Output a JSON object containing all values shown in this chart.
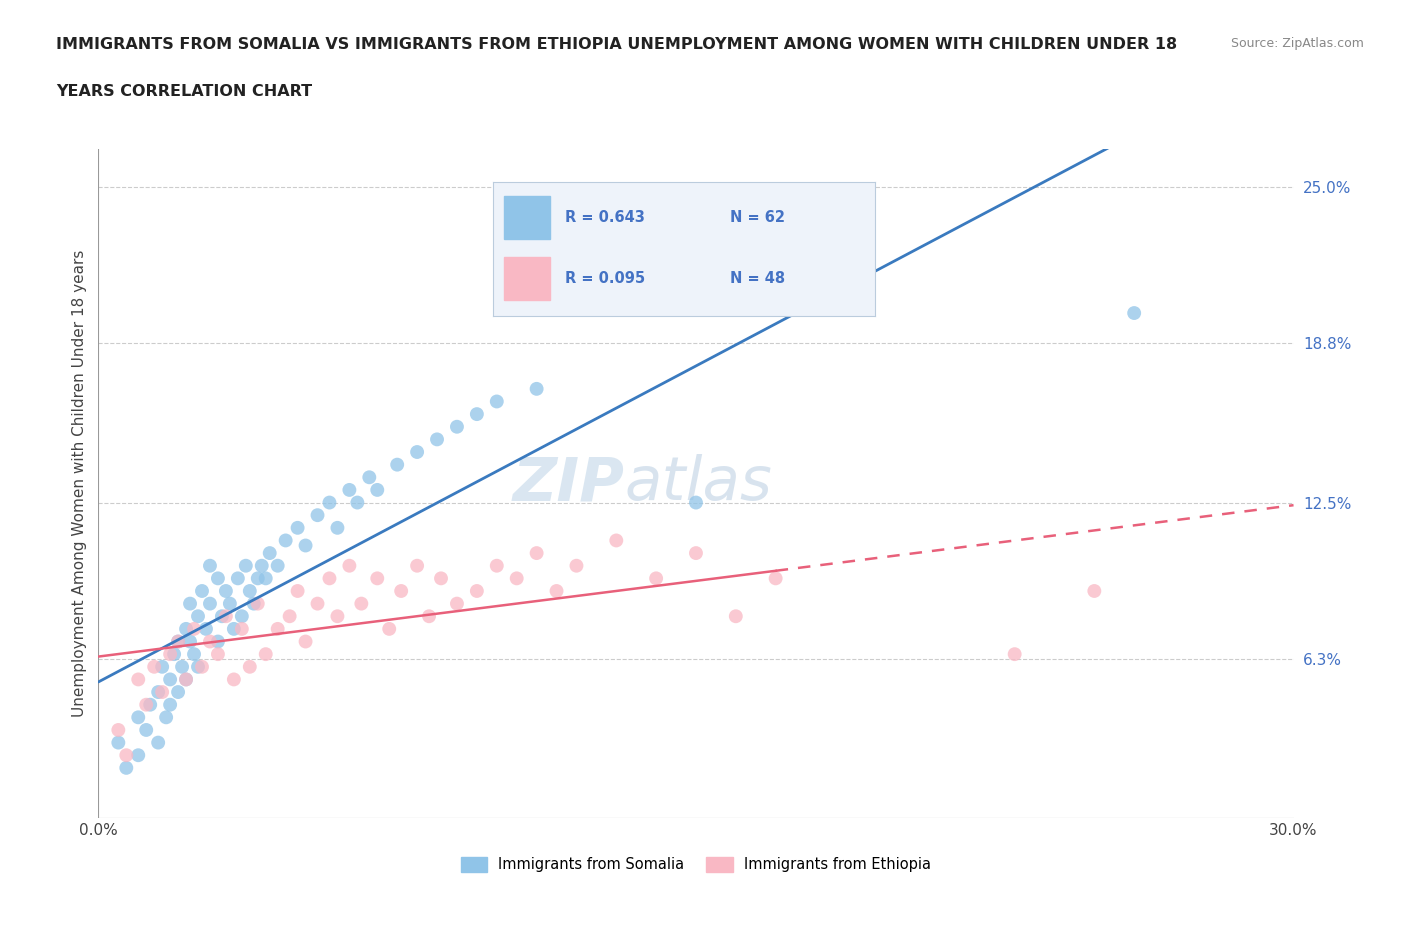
{
  "title_line1": "IMMIGRANTS FROM SOMALIA VS IMMIGRANTS FROM ETHIOPIA UNEMPLOYMENT AMONG WOMEN WITH CHILDREN UNDER 18",
  "title_line2": "YEARS CORRELATION CHART",
  "source": "Source: ZipAtlas.com",
  "ylabel": "Unemployment Among Women with Children Under 18 years",
  "xlim": [
    0.0,
    0.3
  ],
  "ylim": [
    0.0,
    0.265
  ],
  "x_ticks": [
    0.0,
    0.05,
    0.1,
    0.15,
    0.2,
    0.25,
    0.3
  ],
  "x_tick_labels": [
    "0.0%",
    "",
    "",
    "",
    "",
    "",
    "30.0%"
  ],
  "y_tick_labels_right": [
    "6.3%",
    "12.5%",
    "18.8%",
    "25.0%"
  ],
  "y_ticks_right": [
    0.063,
    0.125,
    0.188,
    0.25
  ],
  "somalia_color": "#90c4e8",
  "ethiopia_color": "#f9b8c4",
  "somalia_line_color": "#3a7abf",
  "ethiopia_line_color": "#e8607a",
  "R_somalia": "0.643",
  "N_somalia": "62",
  "R_ethiopia": "0.095",
  "N_ethiopia": "48",
  "watermark_zip": "ZIP",
  "watermark_atlas": "atlas",
  "legend_label_somalia": "Immigrants from Somalia",
  "legend_label_ethiopia": "Immigrants from Ethiopia",
  "somalia_x": [
    0.005,
    0.007,
    0.01,
    0.01,
    0.012,
    0.013,
    0.015,
    0.015,
    0.016,
    0.017,
    0.018,
    0.018,
    0.019,
    0.02,
    0.02,
    0.021,
    0.022,
    0.022,
    0.023,
    0.023,
    0.024,
    0.025,
    0.025,
    0.026,
    0.027,
    0.028,
    0.028,
    0.03,
    0.03,
    0.031,
    0.032,
    0.033,
    0.034,
    0.035,
    0.036,
    0.037,
    0.038,
    0.039,
    0.04,
    0.041,
    0.042,
    0.043,
    0.045,
    0.047,
    0.05,
    0.052,
    0.055,
    0.058,
    0.06,
    0.063,
    0.065,
    0.068,
    0.07,
    0.075,
    0.08,
    0.085,
    0.09,
    0.095,
    0.1,
    0.11,
    0.15,
    0.26
  ],
  "somalia_y": [
    0.03,
    0.02,
    0.04,
    0.025,
    0.035,
    0.045,
    0.05,
    0.03,
    0.06,
    0.04,
    0.055,
    0.045,
    0.065,
    0.07,
    0.05,
    0.06,
    0.055,
    0.075,
    0.07,
    0.085,
    0.065,
    0.08,
    0.06,
    0.09,
    0.075,
    0.085,
    0.1,
    0.095,
    0.07,
    0.08,
    0.09,
    0.085,
    0.075,
    0.095,
    0.08,
    0.1,
    0.09,
    0.085,
    0.095,
    0.1,
    0.095,
    0.105,
    0.1,
    0.11,
    0.115,
    0.108,
    0.12,
    0.125,
    0.115,
    0.13,
    0.125,
    0.135,
    0.13,
    0.14,
    0.145,
    0.15,
    0.155,
    0.16,
    0.165,
    0.17,
    0.125,
    0.2
  ],
  "ethiopia_x": [
    0.005,
    0.007,
    0.01,
    0.012,
    0.014,
    0.016,
    0.018,
    0.02,
    0.022,
    0.024,
    0.026,
    0.028,
    0.03,
    0.032,
    0.034,
    0.036,
    0.038,
    0.04,
    0.042,
    0.045,
    0.048,
    0.05,
    0.052,
    0.055,
    0.058,
    0.06,
    0.063,
    0.066,
    0.07,
    0.073,
    0.076,
    0.08,
    0.083,
    0.086,
    0.09,
    0.095,
    0.1,
    0.105,
    0.11,
    0.115,
    0.12,
    0.13,
    0.14,
    0.15,
    0.16,
    0.17,
    0.23,
    0.25
  ],
  "ethiopia_y": [
    0.035,
    0.025,
    0.055,
    0.045,
    0.06,
    0.05,
    0.065,
    0.07,
    0.055,
    0.075,
    0.06,
    0.07,
    0.065,
    0.08,
    0.055,
    0.075,
    0.06,
    0.085,
    0.065,
    0.075,
    0.08,
    0.09,
    0.07,
    0.085,
    0.095,
    0.08,
    0.1,
    0.085,
    0.095,
    0.075,
    0.09,
    0.1,
    0.08,
    0.095,
    0.085,
    0.09,
    0.1,
    0.095,
    0.105,
    0.09,
    0.1,
    0.11,
    0.095,
    0.105,
    0.08,
    0.095,
    0.065,
    0.09
  ]
}
